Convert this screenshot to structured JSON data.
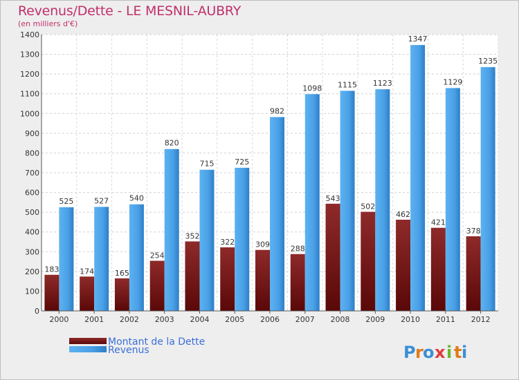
{
  "chart_data": {
    "type": "bar",
    "title": "Revenus/Dette - LE MESNIL-AUBRY",
    "subtitle": "(en milliers d'€)",
    "categories": [
      "2000",
      "2001",
      "2002",
      "2003",
      "2004",
      "2005",
      "2006",
      "2007",
      "2008",
      "2009",
      "2010",
      "2011",
      "2012"
    ],
    "series": [
      {
        "name": "Montant de la Dette",
        "values": [
          183,
          174,
          165,
          254,
          352,
          322,
          309,
          288,
          543,
          502,
          462,
          421,
          378
        ]
      },
      {
        "name": "Revenus",
        "values": [
          525,
          527,
          540,
          820,
          715,
          725,
          982,
          1098,
          1115,
          1123,
          1347,
          1129,
          1235
        ]
      }
    ],
    "ylim": [
      0,
      1400
    ],
    "yticks": [
      0,
      100,
      200,
      300,
      400,
      500,
      600,
      700,
      800,
      900,
      1000,
      1100,
      1200,
      1300,
      1400
    ],
    "grid": true,
    "legend_placement": "bottom-left"
  },
  "logo": {
    "letters": [
      "P",
      "r",
      "o",
      "x",
      "i",
      "t",
      "i"
    ],
    "colors": [
      "#3a8fd8",
      "#e07a1a",
      "#3a8fd8",
      "#e03a3a",
      "#6cb52d",
      "#e07a1a",
      "#3a8fd8"
    ]
  },
  "colors": {
    "debt": "#7a1a1a",
    "revenue": "#4aa0e6",
    "title": "#c0306a",
    "legend": "#3a6fd8"
  }
}
